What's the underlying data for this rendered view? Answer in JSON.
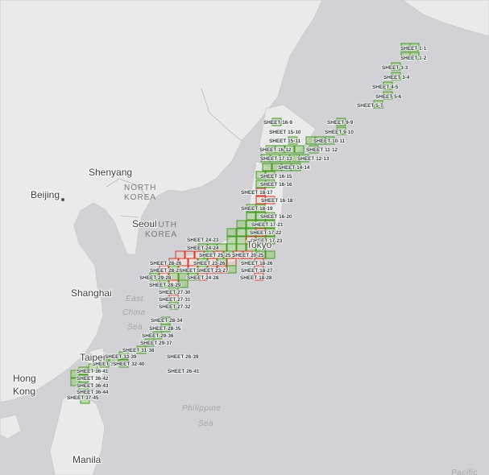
{
  "map": {
    "place_labels": [
      {
        "id": "beijing",
        "text": "Beijing"
      },
      {
        "id": "shenyang",
        "text": "Shenyang"
      },
      {
        "id": "seoul",
        "text": "Seoul"
      },
      {
        "id": "shanghai",
        "text": "Shanghai"
      },
      {
        "id": "taipei",
        "text": "Taipei"
      },
      {
        "id": "hong-kong-1",
        "text": "Hong"
      },
      {
        "id": "hong-kong-2",
        "text": "Kong"
      },
      {
        "id": "manila",
        "text": "Manila"
      },
      {
        "id": "tokyo",
        "text": "Tokyo"
      }
    ],
    "country_labels": [
      {
        "id": "north-korea-1",
        "text": "NORTH"
      },
      {
        "id": "north-korea-2",
        "text": "KOREA"
      },
      {
        "id": "south-korea-1",
        "text": "SOUTH"
      },
      {
        "id": "south-korea-2",
        "text": "KOREA"
      }
    ],
    "water_labels": [
      {
        "id": "east-china-sea-1",
        "text": "East"
      },
      {
        "id": "east-china-sea-2",
        "text": "China"
      },
      {
        "id": "east-china-sea-3",
        "text": "Sea"
      },
      {
        "id": "philippine-sea-1",
        "text": "Philippine"
      },
      {
        "id": "philippine-sea-2",
        "text": "Sea"
      },
      {
        "id": "pacific",
        "text": "Pacific"
      }
    ],
    "sheet_labels": [
      "SHEET 1-1",
      "SHEET 1-2",
      "SHEET 3-3",
      "SHEET 3-4",
      "SHEET 4-5",
      "SHEET 5-6",
      "SHEET 5-7",
      "SHEET 16-9",
      "SHEET 9-9",
      "SHEET 15-10",
      "SHEET 9-10",
      "SHEET 15-11",
      "SHEET 10-11",
      "SHEET 16-12",
      "SHEET 11-12",
      "SHEET 17-13",
      "SHEET 12-13",
      "SHEET 14-14",
      "SHEET 16-15",
      "SHEET 16-16",
      "SHEET 18-17",
      "SHEET 16-18",
      "SHEET 18-19",
      "SHEET 16-20",
      "SHEET 17-21",
      "SHEET 17-22",
      "SHEET 17-23",
      "SHEET 24-23",
      "SHEET 24-24",
      "SHEET 25-25",
      "SHEET 20-25",
      "SHEET 28-26",
      "SHEET 23-26",
      "SHEET 18-26",
      "SHEET 28-27",
      "SHEET 25-27",
      "SHEET 23-27",
      "SHEET 18-27",
      "SHEET 29-28",
      "SHEET 24-28",
      "SHEET 18-28",
      "SHEET 28-29",
      "SHEET 27-30",
      "SHEET 27-31",
      "SHEET 27-32",
      "SHEET 28-34",
      "SHEET 28-35",
      "SHEET 29-36",
      "SHEET 29-37",
      "SHEET 31-38",
      "SHEET 33-39",
      "SHEET 26-39",
      "SHEET 34-40",
      "SHEET 32-40",
      "SHEET 36-41",
      "SHEET 26-41",
      "SHEET 36-42",
      "SHEET 36-43",
      "SHEET 36-44",
      "SHEET 37-45"
    ],
    "colors": {
      "land": "#eaeaea",
      "water": "#d2d2d6",
      "sheet_green": "#4a9a2a",
      "sheet_red": "#d23a32"
    }
  }
}
